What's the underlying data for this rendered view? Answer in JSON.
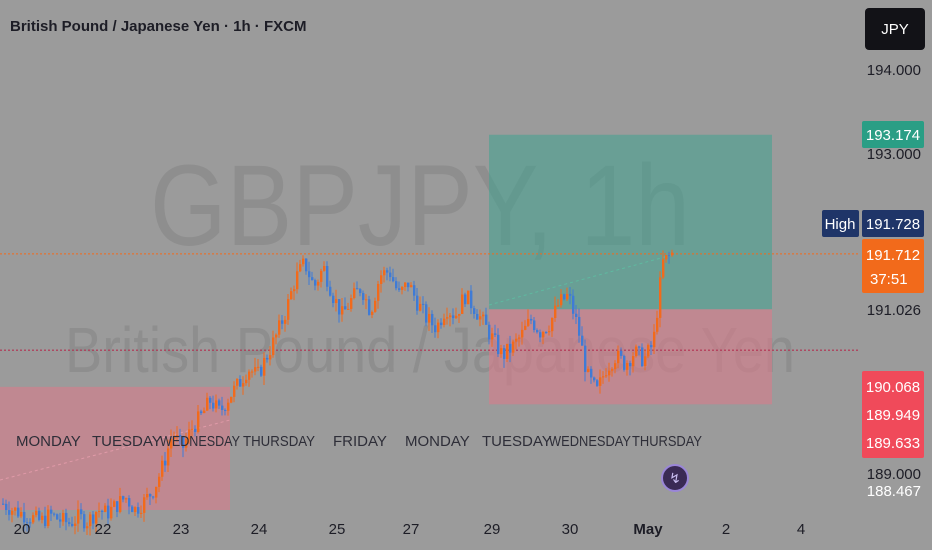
{
  "header": {
    "title": "British Pound / Japanese Yen · 1h · FXCM",
    "currency_button": "JPY"
  },
  "watermark": {
    "symbol": "GBPJPY, 1h",
    "name": "British Pound / Japanese Yen"
  },
  "colors": {
    "background": "#9b9b9b",
    "bull": "#f26a1b",
    "bear": "#3f7bd6",
    "profit_zone": "#3fa38f",
    "loss_zone": "#d97b8a",
    "label_green": "#2a9e85",
    "label_red": "#f04a5a",
    "label_orange": "#f26a1b",
    "label_navy": "#1f3568"
  },
  "chart_data": {
    "type": "candlestick",
    "interval": "1h",
    "ylim": [
      188.2,
      194.8
    ],
    "price_axis_ticks": [
      "194.000",
      "193.000",
      "189.000"
    ],
    "x_date_labels": [
      "20",
      "22",
      "23",
      "24",
      "25",
      "27",
      "29",
      "30",
      "May",
      "2",
      "4"
    ],
    "weekday_labels": [
      "MONDAY",
      "TUESDAY",
      "WEDNESDAY",
      "THURSDAY",
      "FRIDAY",
      "MONDAY",
      "TUESDAY",
      "WEDNESDAY",
      "THURSDAY"
    ],
    "price_labels": [
      {
        "value": "193.174",
        "kind": "target"
      },
      {
        "value": "191.728",
        "kind": "high",
        "tag": "High"
      },
      {
        "value": "191.712",
        "kind": "last",
        "countdown": "37:51"
      },
      {
        "value": "191.026",
        "kind": "entry"
      },
      {
        "value": "190.068",
        "kind": "stop"
      },
      {
        "value": "189.949",
        "kind": "stop"
      },
      {
        "value": "189.633",
        "kind": "stop"
      },
      {
        "value": "188.467",
        "kind": "plain"
      }
    ],
    "last_price": 191.712,
    "high_price": 191.728,
    "reference_line": 190.52,
    "zones": {
      "long_position": {
        "target": 193.174,
        "entry": 191.026,
        "stop": 189.949
      },
      "earlier_stop_zone": {
        "top": 189.633
      }
    },
    "price_path": [
      188.62,
      188.55,
      188.5,
      188.45,
      188.4,
      188.48,
      188.42,
      188.38,
      188.45,
      188.4,
      188.55,
      188.5,
      188.6,
      188.7,
      188.55,
      188.65,
      188.8,
      189.1,
      189.5,
      189.3,
      189.55,
      189.7,
      189.9,
      189.75,
      189.95,
      190.1,
      190.3,
      190.2,
      190.45,
      190.7,
      191.0,
      191.4,
      191.6,
      191.3,
      191.55,
      191.2,
      190.95,
      191.15,
      191.3,
      191.0,
      191.45,
      191.5,
      191.2,
      191.35,
      191.1,
      190.9,
      190.8,
      191.05,
      190.95,
      191.2,
      191.05,
      190.85,
      190.65,
      190.45,
      190.55,
      190.7,
      190.9,
      190.75,
      190.85,
      191.1,
      191.2,
      190.8,
      190.2,
      190.0,
      190.3,
      190.45,
      190.35,
      190.5,
      190.4,
      190.6,
      191.6,
      191.712
    ]
  }
}
